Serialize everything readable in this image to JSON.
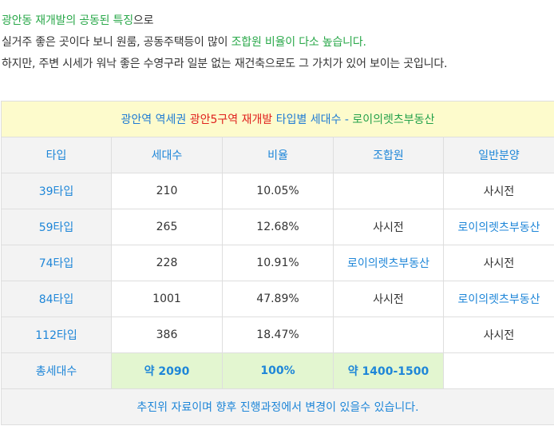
{
  "intro": {
    "line1": {
      "green": "광안동 재개발의 공동된 특징",
      "tail": "으로"
    },
    "line2": {
      "head": "실거주 좋은 곳이다 보니 원룸, 공동주택등이 많이 ",
      "green": "조합원 비율이 다소 높습니다."
    },
    "line3": "하지만, 주변 시세가 워낙 좋은 수영구라 일분 없는 재건축으로도 그 가치가 있어 보이는 곳입니다."
  },
  "table": {
    "caption": {
      "part1": "광안역 역세권 ",
      "part2": "광안5구역 재개발",
      "part3": " 타입별 세대수 - ",
      "part4": "로이의렛츠부동산"
    },
    "headers": [
      "타입",
      "세대수",
      "비율",
      "조합원",
      "일반분양"
    ],
    "rows": [
      {
        "type": "39타입",
        "units": "210",
        "ratio": "10.05%",
        "member": "",
        "general": "사시전",
        "member_blue": false,
        "general_blue": false
      },
      {
        "type": "59타입",
        "units": "265",
        "ratio": "12.68%",
        "member": "사시전",
        "general": "로이의렛츠부동산",
        "member_blue": false,
        "general_blue": true
      },
      {
        "type": "74타입",
        "units": "228",
        "ratio": "10.91%",
        "member": "로이의렛츠부동산",
        "general": "사시전",
        "member_blue": true,
        "general_blue": false
      },
      {
        "type": "84타입",
        "units": "1001",
        "ratio": "47.89%",
        "member": "사시전",
        "general": "로이의렛츠부동산",
        "member_blue": false,
        "general_blue": true
      },
      {
        "type": "112타입",
        "units": "386",
        "ratio": "18.47%",
        "member": "",
        "general": "사시전",
        "member_blue": false,
        "general_blue": false
      }
    ],
    "total": {
      "label": "총세대수",
      "units": "약 2090",
      "ratio": "100%",
      "member": "약 1400-1500",
      "general": ""
    },
    "note": "추진위 자료이며 향후 진행과정에서 변경이 있을수 있습니다."
  }
}
